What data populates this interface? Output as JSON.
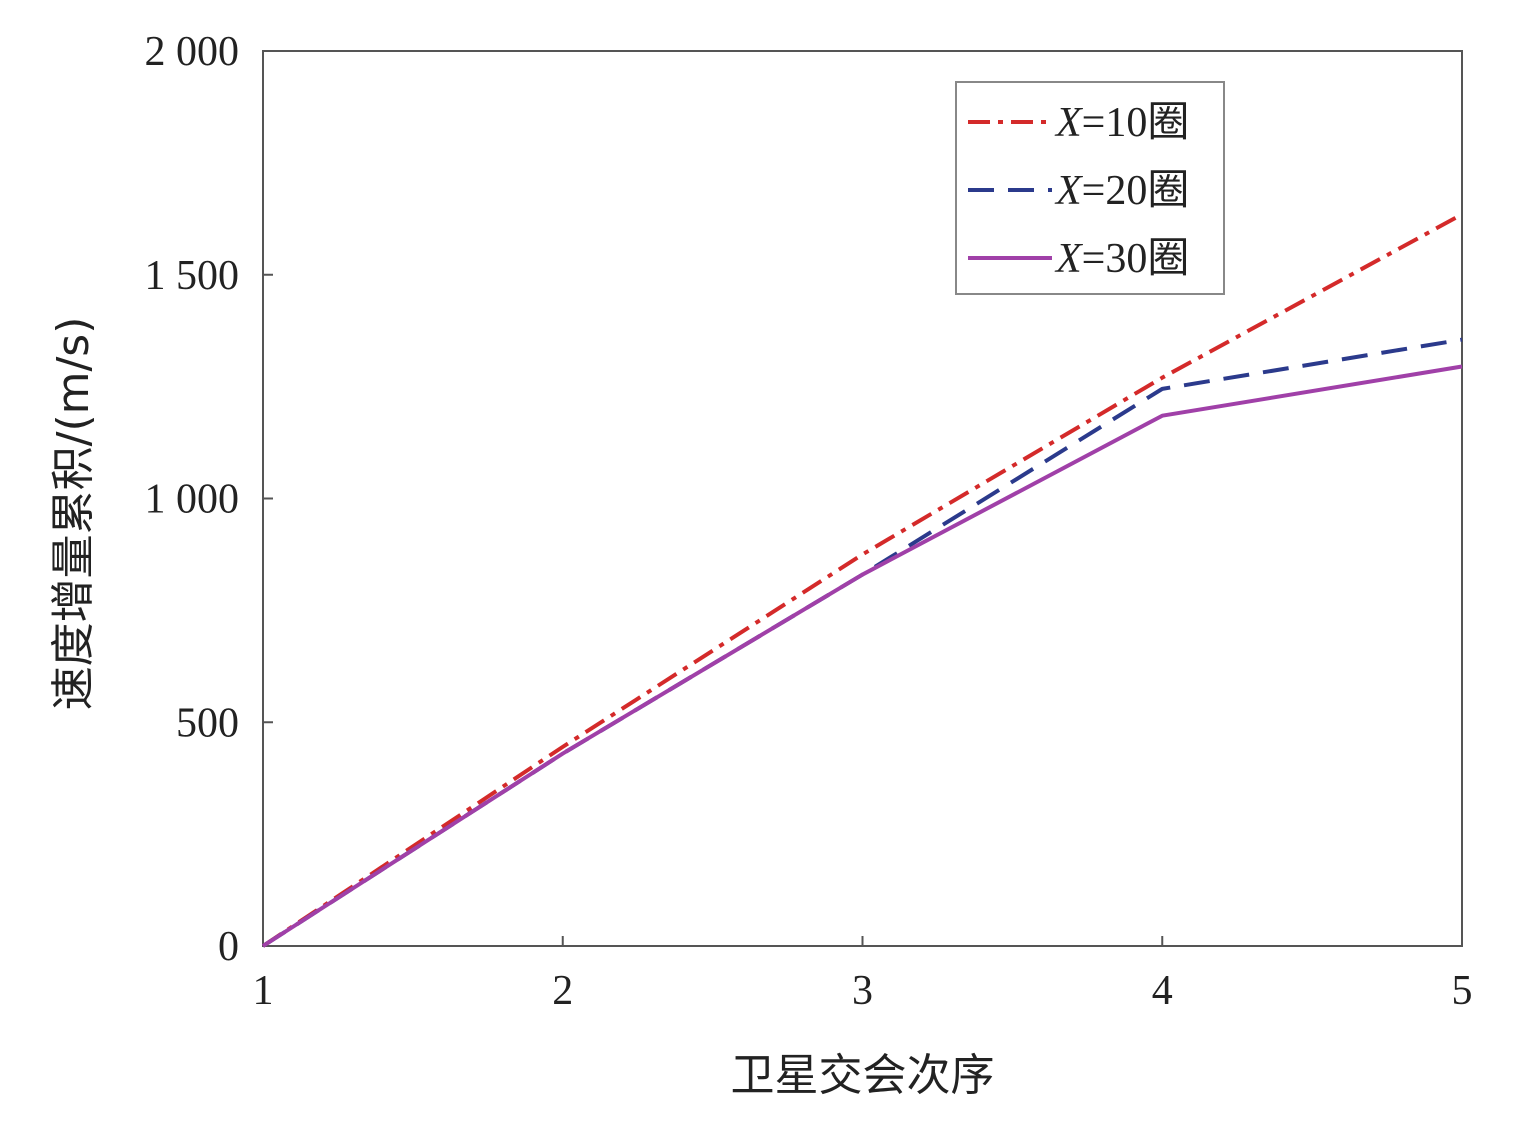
{
  "chart_data": {
    "type": "line",
    "title": "",
    "xlabel": "卫星交会次序",
    "ylabel": "速度增量累积/(m/s)",
    "x": [
      1,
      2,
      3,
      4,
      5
    ],
    "x_tick_labels": [
      "1",
      "2",
      "3",
      "4",
      "5"
    ],
    "xlim": [
      1,
      5
    ],
    "ylim": [
      0,
      2000
    ],
    "y_ticks": [
      0,
      500,
      1000,
      1500,
      2000
    ],
    "y_tick_labels": [
      "0",
      "500",
      "1 000",
      "1 500",
      "2 000"
    ],
    "grid": false,
    "legend_position": "top-right",
    "series": [
      {
        "name": "X=10圈",
        "name_var": "X",
        "name_rest": "=10圈",
        "values": [
          0,
          445,
          875,
          1270,
          1635
        ],
        "color": "#d42a2a",
        "style": "dashdot"
      },
      {
        "name": "X=20圈",
        "name_var": "X",
        "name_rest": "=20圈",
        "values": [
          0,
          430,
          830,
          1245,
          1355
        ],
        "color": "#2b3a8c",
        "style": "dashed"
      },
      {
        "name": "X=30圈",
        "name_var": "X",
        "name_rest": "=30圈",
        "values": [
          0,
          430,
          830,
          1185,
          1295
        ],
        "color": "#a040a8",
        "style": "solid"
      }
    ]
  }
}
